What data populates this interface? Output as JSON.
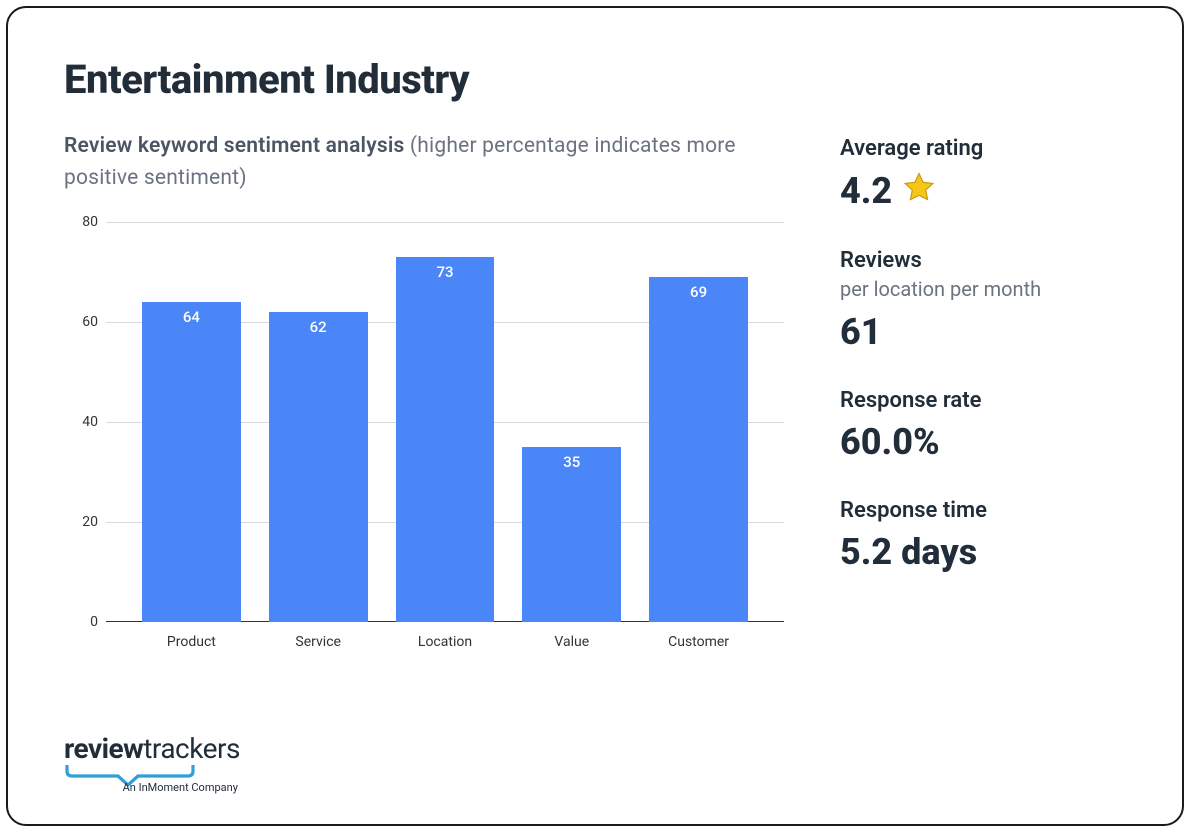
{
  "title": "Entertainment Industry",
  "subtitle_bold": "Review keyword sentiment analysis",
  "subtitle_rest": " (higher percentage indicates more positive sentiment)",
  "chart": {
    "type": "bar",
    "categories": [
      "Product",
      "Service",
      "Location",
      "Value",
      "Customer"
    ],
    "values": [
      64,
      62,
      73,
      35,
      69
    ],
    "bar_color": "#4a86f7",
    "value_label_color": "#ffffff",
    "value_label_fontsize": 15,
    "ylim": [
      0,
      80
    ],
    "ytick_step": 20,
    "yticks": [
      0,
      20,
      40,
      60,
      80
    ],
    "grid_color": "#d9d9d9",
    "axis_color": "#333333",
    "background_color": "#ffffff",
    "bar_width_ratio": 0.78,
    "xlabel_fontsize": 14,
    "ylabel_fontsize": 14
  },
  "stats": {
    "avg_rating": {
      "label": "Average rating",
      "value": "4.2"
    },
    "reviews": {
      "label": "Reviews",
      "sub": "per location per month",
      "value": "61"
    },
    "response_rate": {
      "label": "Response rate",
      "value": "60.0%"
    },
    "response_time": {
      "label": "Response time",
      "value": "5.2 days"
    }
  },
  "star": {
    "fill": "#f5c518",
    "stroke": "#c79a0b"
  },
  "logo": {
    "brand_bold": "review",
    "brand_light": "trackers",
    "tagline": "An InMoment Company",
    "bracket_color": "#2f9fd8",
    "text_color": "#222d3a"
  },
  "colors": {
    "title": "#222d3a",
    "subtitle": "#6b7280",
    "card_border": "#1a1a1a",
    "card_bg": "#ffffff"
  }
}
